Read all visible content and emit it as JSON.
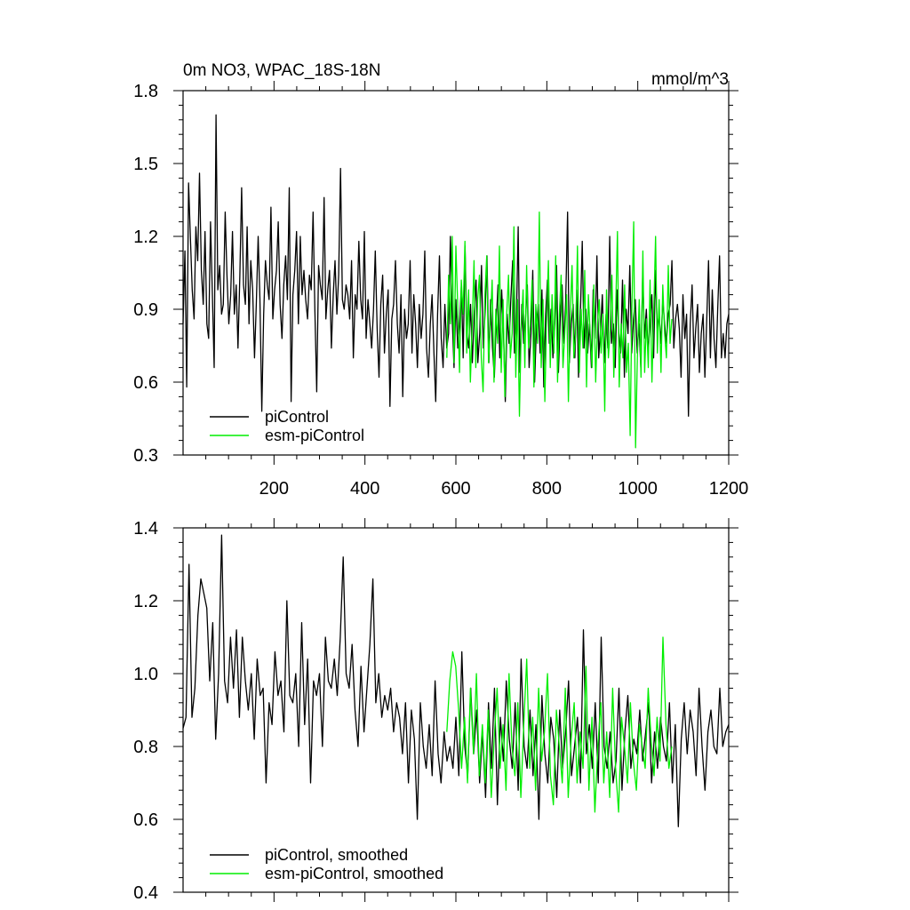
{
  "figure": {
    "title_left": "0m NO3, WPAC_18S-18N",
    "title_right": "mmol/m^3"
  },
  "colors": {
    "piControl": "#000000",
    "esm-piControl": "#00ee00",
    "frame": "#000000"
  },
  "chart_data": [
    {
      "id": "raw",
      "type": "line",
      "title": "0m NO3, WPAC_18S-18N",
      "units_label": "mmol/m^3",
      "xlim": [
        0,
        1200
      ],
      "ylim": [
        0.3,
        1.8
      ],
      "xticks": [
        200,
        400,
        600,
        800,
        1000,
        1200
      ],
      "xtick_labels": [
        "200",
        "400",
        "600",
        "800",
        "1000",
        "1200"
      ],
      "yticks": [
        0.3,
        0.6,
        0.9,
        1.2,
        1.5,
        1.8
      ],
      "ytick_labels": [
        "0.3",
        "0.6",
        "0.9",
        "1.2",
        "1.5",
        "1.8"
      ],
      "legend_position": "bottom-left",
      "series": [
        {
          "name": "piControl",
          "color": "#000000",
          "x_start": 0,
          "x_end": 1200,
          "values": [
            0.84,
            1.14,
            0.58,
            1.42,
            1.2,
            0.98,
            0.86,
            1.24,
            1.1,
            1.46,
            1.06,
            0.92,
            1.22,
            0.84,
            0.78,
            1.26,
            0.96,
            0.66,
            1.7,
            0.98,
            1.08,
            0.88,
            0.92,
            1.3,
            1.04,
            0.84,
            0.96,
            1.22,
            0.88,
            1.0,
            0.74,
            1.04,
            1.4,
            1.0,
            0.92,
            1.24,
            0.84,
            1.1,
            0.98,
            0.7,
            0.92,
            1.2,
            0.94,
            0.48,
            0.88,
            1.1,
            1.0,
            0.94,
            1.32,
            0.86,
            0.98,
            1.06,
            1.26,
            0.92,
            0.78,
            1.0,
            1.12,
            0.94,
            1.4,
            0.52,
            0.96,
            1.06,
            1.22,
            0.84,
            1.2,
            0.96,
            1.06,
            0.94,
            0.86,
            1.04,
            0.98,
            1.3,
            0.9,
            0.56,
            1.08,
            1.0,
            0.94,
            1.36,
            0.86,
            0.98,
            1.06,
            0.74,
            0.96,
            1.1,
            0.88,
            1.04,
            1.48,
            0.94,
            0.9,
            1.0,
            0.96,
            0.86,
            1.1,
            0.7,
            0.96,
            0.9,
            1.18,
            0.94,
            0.86,
            1.22,
            0.78,
            0.94,
            0.84,
            0.74,
            0.9,
            1.14,
            0.82,
            0.62,
            0.92,
            1.04,
            0.72,
            0.88,
            0.98,
            0.5,
            0.86,
            0.92,
            1.1,
            0.84,
            0.72,
            0.96,
            0.54,
            0.9,
            0.78,
            0.84,
            1.1,
            0.72,
            0.96,
            0.84,
            0.66,
            0.92,
            0.78,
            0.88,
            1.14,
            0.74,
            0.62,
            0.84,
            0.96,
            0.72,
            0.52,
            0.88,
            1.12,
            0.78,
            0.66,
            0.92,
            0.74,
            0.8,
            1.2,
            0.86,
            0.66,
            0.94,
            0.74,
            0.84,
            1.0,
            0.7,
            1.16,
            0.8,
            0.74,
            0.92,
            0.68,
            0.88,
            1.02,
            0.68,
            0.8,
            1.08,
            0.74,
            0.9,
            1.12,
            0.68,
            0.94,
            0.74,
            0.62,
            0.84,
            1.0,
            0.7,
            0.98,
            0.8,
            0.52,
            0.88,
            0.76,
            0.94,
            1.1,
            0.72,
            0.84,
            1.24,
            0.64,
            0.92,
            0.76,
            0.86,
            1.0,
            0.66,
            0.8,
            1.06,
            0.6,
            0.84,
            0.92,
            0.72,
            0.98,
            0.58,
            0.88,
            1.02,
            0.76,
            0.9,
            0.7,
            0.84,
            1.08,
            0.64,
            0.86,
            1.0,
            0.76,
            0.94,
            1.3,
            0.68,
            0.84,
            0.92,
            0.7,
            0.98,
            0.62,
            0.88,
            1.18,
            0.74,
            0.9,
            0.72,
            0.84,
            0.66,
            0.98,
            0.78,
            1.12,
            0.7,
            0.82,
            0.96,
            0.68,
            0.88,
            0.74,
            1.2,
            0.76,
            0.84,
            0.66,
            0.98,
            0.8,
            0.72,
            1.02,
            0.62,
            0.9,
            0.8,
            1.08,
            0.72,
            0.86,
            0.94,
            0.72,
            0.84,
            0.66,
            1.04,
            0.78,
            0.9,
            0.72,
            0.84,
            0.96,
            0.7,
            1.06,
            0.82,
            0.88,
            0.76,
            0.94,
            0.84,
            0.76,
            0.88,
            0.92,
            1.1,
            0.74,
            0.86,
            0.92,
            0.82,
            0.62,
            0.96,
            0.78,
            0.88,
            0.46,
            0.84,
            1.0,
            0.7,
            0.82,
            0.92,
            0.64,
            0.8,
            0.88,
            0.62,
            0.86,
            1.1,
            0.7,
            0.98,
            0.78,
            0.66,
            0.9,
            1.12,
            0.7,
            0.8,
            0.7,
            0.84,
            0.88
          ]
        },
        {
          "name": "esm-piControl",
          "color": "#00ee00",
          "x_start": 580,
          "x_end": 1075,
          "values": [
            0.7,
            1.04,
            0.84,
            1.2,
            0.68,
            1.16,
            0.92,
            0.64,
            1.02,
            0.88,
            1.18,
            0.72,
            0.98,
            0.6,
            0.84,
            1.1,
            0.66,
            0.94,
            1.04,
            0.7,
            0.56,
            0.96,
            1.12,
            0.68,
            0.84,
            1.02,
            0.6,
            0.9,
            0.76,
            1.16,
            0.64,
            0.94,
            0.54,
            0.88,
            1.04,
            0.7,
            0.8,
            1.24,
            0.62,
            0.94,
            0.46,
            0.82,
            0.98,
            0.66,
            1.08,
            0.74,
            0.84,
            1.02,
            0.58,
            0.92,
            0.76,
            1.3,
            0.66,
            0.94,
            0.52,
            0.86,
            1.1,
            0.66,
            0.96,
            0.72,
            1.12,
            0.6,
            0.88,
            1.04,
            0.66,
            0.8,
            0.96,
            0.52,
            0.88,
            1.08,
            0.7,
            0.8,
            1.16,
            0.64,
            0.9,
            0.74,
            1.06,
            0.58,
            0.96,
            0.8,
            0.66,
            1.0,
            0.6,
            0.84,
            0.94,
            0.72,
            0.88,
            0.48,
            0.98,
            0.7,
            0.82,
            1.04,
            0.62,
            0.88,
            1.22,
            0.58,
            0.84,
            0.7,
            1.0,
            0.64,
            0.76,
            0.38,
            0.92,
            1.26,
            0.33,
            0.7,
            0.94,
            0.62,
            1.14,
            0.64,
            0.86,
            0.66,
            1.02,
            0.6,
            0.88,
            1.2,
            0.72,
            0.94,
            0.64,
            1.0,
            0.8,
            0.7,
            1.08,
            0.76,
            0.86
          ]
        }
      ]
    },
    {
      "id": "smoothed",
      "type": "line",
      "xlim": [
        0,
        1200
      ],
      "ylim": [
        0.4,
        1.4
      ],
      "xticks": [
        200,
        400,
        600,
        800,
        1000,
        1200
      ],
      "yticks": [
        0.4,
        0.6,
        0.8,
        1.0,
        1.2,
        1.4
      ],
      "ytick_labels": [
        "0.4",
        "0.6",
        "0.8",
        "1.0",
        "1.2",
        "1.4"
      ],
      "legend_position": "bottom-left",
      "series": [
        {
          "name": "piControl, smoothed",
          "color": "#000000",
          "x_start": 0,
          "x_end": 1200,
          "values": [
            0.85,
            0.88,
            1.3,
            0.88,
            0.96,
            1.16,
            1.26,
            1.22,
            1.18,
            0.98,
            1.14,
            0.82,
            1.0,
            1.38,
            0.98,
            0.92,
            1.1,
            0.96,
            1.12,
            0.88,
            1.1,
            0.98,
            0.9,
            1.0,
            0.82,
            1.04,
            0.94,
            0.96,
            0.7,
            0.92,
            0.86,
            1.06,
            0.94,
            0.98,
            0.84,
            1.2,
            0.94,
            0.92,
            1.0,
            0.8,
            1.14,
            0.86,
            1.04,
            0.7,
            0.98,
            0.94,
            1.0,
            0.8,
            1.1,
            0.98,
            0.96,
            1.04,
            0.94,
            1.1,
            1.32,
            1.0,
            0.96,
            1.08,
            0.9,
            0.8,
            1.02,
            0.84,
            0.96,
            1.08,
            1.26,
            0.92,
            1.0,
            0.88,
            0.94,
            0.9,
            0.96,
            0.84,
            0.92,
            0.88,
            0.78,
            0.92,
            0.7,
            0.9,
            0.82,
            0.6,
            0.92,
            0.8,
            0.74,
            0.86,
            0.72,
            0.98,
            0.78,
            0.7,
            0.84,
            0.76,
            0.8,
            0.74,
            0.88,
            0.72,
            1.06,
            0.8,
            0.72,
            0.96,
            0.78,
            0.9,
            0.7,
            0.84,
            0.66,
            0.92,
            0.74,
            0.96,
            0.64,
            0.88,
            0.76,
            0.98,
            0.82,
            0.74,
            0.92,
            0.68,
            1.04,
            0.8,
            0.74,
            0.9,
            0.72,
            0.86,
            0.6,
            0.94,
            0.78,
            0.7,
            0.88,
            0.82,
            0.66,
            0.9,
            0.74,
            0.84,
            0.98,
            0.72,
            0.8,
            0.88,
            0.7,
            1.12,
            0.78,
            0.86,
            0.74,
            0.92,
            0.7,
            1.1,
            0.8,
            0.74,
            0.84,
            0.7,
            0.76,
            0.96,
            0.68,
            0.84,
            0.94,
            0.74,
            0.82,
            0.78,
            0.9,
            0.76,
            0.84,
            0.92,
            0.7,
            0.84,
            0.74,
            0.88,
            0.8,
            0.76,
            0.92,
            0.7,
            0.86,
            0.58,
            0.82,
            0.92,
            0.78,
            0.9,
            0.84,
            0.72,
            0.96,
            0.8,
            0.68,
            0.84,
            0.9,
            0.8,
            0.78,
            0.96,
            0.8,
            0.84,
            0.86
          ]
        },
        {
          "name": "esm-piControl, smoothed",
          "color": "#00ee00",
          "x_start": 580,
          "x_end": 1075,
          "values": [
            0.84,
            0.98,
            1.06,
            1.02,
            0.9,
            0.74,
            0.88,
            0.7,
            0.96,
            0.78,
            1.0,
            0.72,
            0.86,
            0.7,
            0.9,
            0.66,
            0.82,
            0.96,
            0.74,
            0.86,
            0.68,
            1.0,
            0.8,
            0.72,
            0.92,
            0.66,
            0.86,
            1.04,
            0.74,
            0.88,
            0.68,
            0.96,
            0.76,
            0.84,
            1.0,
            0.72,
            0.64,
            0.9,
            0.8,
            0.7,
            0.96,
            0.66,
            0.82,
            0.92,
            0.7,
            0.84,
            0.74,
            1.02,
            0.68,
            0.88,
            0.62,
            0.8,
            0.92,
            0.7,
            0.84,
            0.66,
            0.96,
            0.74,
            0.62,
            0.88,
            0.8,
            0.7,
            0.92,
            0.76,
            0.68,
            0.86,
            0.8,
            0.74,
            0.96,
            0.82,
            0.72,
            0.88,
            0.76,
            1.1,
            0.86,
            0.74,
            0.8
          ]
        }
      ]
    }
  ]
}
